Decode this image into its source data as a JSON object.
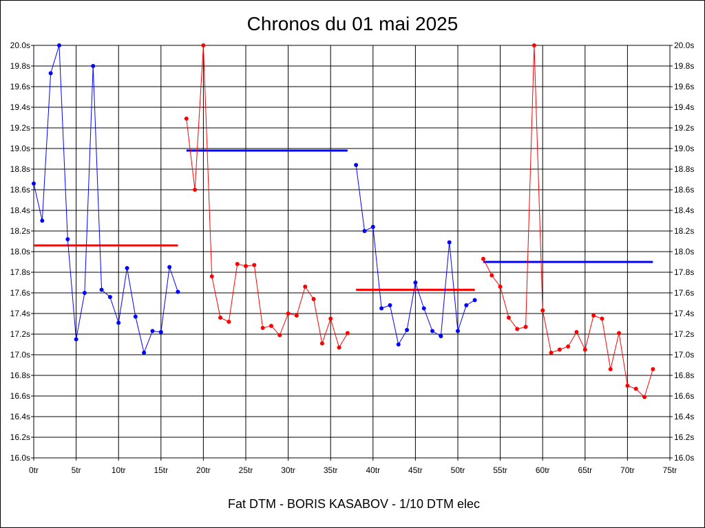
{
  "chart_data": {
    "type": "line",
    "title": "Chronos du 01 mai 2025",
    "footer": "Fat DTM - BORIS KASABOV - 1/10 DTM elec",
    "xlim": [
      0,
      75
    ],
    "ylim": [
      16.0,
      20.0
    ],
    "x_tick_step": 5,
    "y_tick_step": 0.2,
    "x_tick_suffix": "tr",
    "y_tick_suffix": "s",
    "grid": true,
    "y_axis_both_sides": true,
    "series": [
      {
        "color": "#0000ff",
        "points": [
          [
            0,
            18.66
          ],
          [
            1,
            18.3
          ],
          [
            2,
            19.73
          ],
          [
            3,
            20.0
          ],
          [
            4,
            18.12
          ],
          [
            5,
            17.15
          ],
          [
            6,
            17.6
          ],
          [
            7,
            19.8
          ],
          [
            8,
            17.63
          ],
          [
            9,
            17.56
          ],
          [
            10,
            17.31
          ],
          [
            11,
            17.84
          ],
          [
            12,
            17.37
          ],
          [
            13,
            17.02
          ],
          [
            14,
            17.23
          ],
          [
            15,
            17.22
          ],
          [
            16,
            17.85
          ],
          [
            17,
            17.61
          ]
        ],
        "average": 18.06,
        "average_color": "#ff0000"
      },
      {
        "color": "#ff0000",
        "points": [
          [
            18,
            19.29
          ],
          [
            19,
            18.6
          ],
          [
            20,
            20.0
          ],
          [
            21,
            17.76
          ],
          [
            22,
            17.36
          ],
          [
            23,
            17.32
          ],
          [
            24,
            17.88
          ],
          [
            25,
            17.86
          ],
          [
            26,
            17.87
          ],
          [
            27,
            17.26
          ],
          [
            28,
            17.28
          ],
          [
            29,
            17.19
          ],
          [
            30,
            17.4
          ],
          [
            31,
            17.38
          ],
          [
            32,
            17.66
          ],
          [
            33,
            17.54
          ],
          [
            34,
            17.11
          ],
          [
            35,
            17.35
          ],
          [
            36,
            17.07
          ],
          [
            37,
            17.21
          ]
        ],
        "average": 18.98,
        "average_color": "#0000ff"
      },
      {
        "color": "#0000ff",
        "points": [
          [
            38,
            18.84
          ],
          [
            39,
            18.2
          ],
          [
            40,
            18.24
          ],
          [
            41,
            17.45
          ],
          [
            42,
            17.48
          ],
          [
            43,
            17.1
          ],
          [
            44,
            17.24
          ],
          [
            45,
            17.7
          ],
          [
            46,
            17.45
          ],
          [
            47,
            17.23
          ],
          [
            48,
            17.18
          ],
          [
            49,
            18.09
          ],
          [
            50,
            17.23
          ],
          [
            51,
            17.48
          ],
          [
            52,
            17.53
          ]
        ],
        "average": 17.63,
        "average_color": "#ff0000"
      },
      {
        "color": "#ff0000",
        "points": [
          [
            53,
            17.93
          ],
          [
            54,
            17.77
          ],
          [
            55,
            17.66
          ],
          [
            56,
            17.36
          ],
          [
            57,
            17.25
          ],
          [
            58,
            17.27
          ],
          [
            59,
            20.0
          ],
          [
            60,
            17.43
          ],
          [
            61,
            17.02
          ],
          [
            62,
            17.05
          ],
          [
            63,
            17.08
          ],
          [
            64,
            17.22
          ],
          [
            65,
            17.05
          ],
          [
            66,
            17.38
          ],
          [
            67,
            17.35
          ],
          [
            68,
            16.86
          ],
          [
            69,
            17.21
          ],
          [
            70,
            16.7
          ],
          [
            71,
            16.67
          ],
          [
            72,
            16.59
          ],
          [
            73,
            16.86
          ]
        ],
        "average": 17.9,
        "average_color": "#0000ff"
      }
    ]
  }
}
